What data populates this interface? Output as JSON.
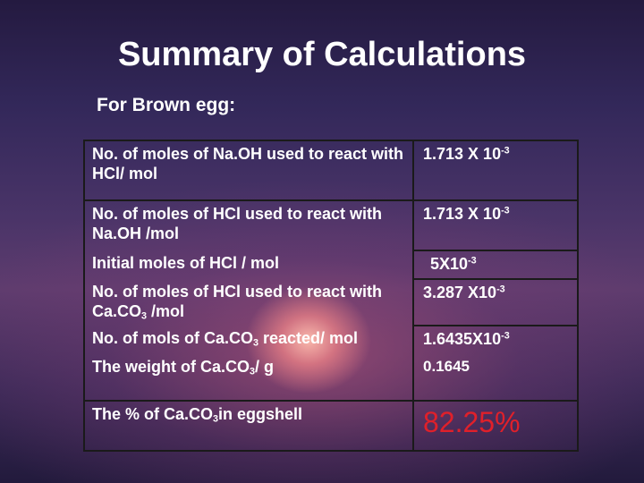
{
  "title": "Summary of Calculations",
  "subtitle": "For Brown egg:",
  "rows": [
    {
      "label_a": "No. of moles of Na.OH used to react with HCl/ mol",
      "value_base": "1.713 X 10",
      "value_exp": "-3"
    },
    {
      "label_a": "No. of moles of HCl used to react with Na.OH /mol",
      "value_base": "1.713 X 10",
      "value_exp": "-3"
    },
    {
      "label_a": "Initial moles of HCl / mol",
      "value_base": "5X10",
      "value_exp": "-3"
    },
    {
      "label_a": "No. of moles of HCl used to react with Ca.CO",
      "label_sub": "3",
      "label_b": " /mol",
      "value_base": "3.287 X10",
      "value_exp": "-3"
    },
    {
      "label_a": "No. of mols of Ca.CO",
      "label_sub": "3",
      "label_b": " reacted/ mol",
      "value_base": "1.6435X10",
      "value_exp": "-3"
    },
    {
      "label_a": "The weight of Ca.CO",
      "label_sub": "3",
      "label_b": "/ g",
      "value_base": "0.1645"
    },
    {
      "label_a": "The % of Ca.CO",
      "label_sub": "3",
      "label_b": "in eggshell",
      "value_base": "82.25%",
      "value_color": "#e0202a"
    }
  ]
}
